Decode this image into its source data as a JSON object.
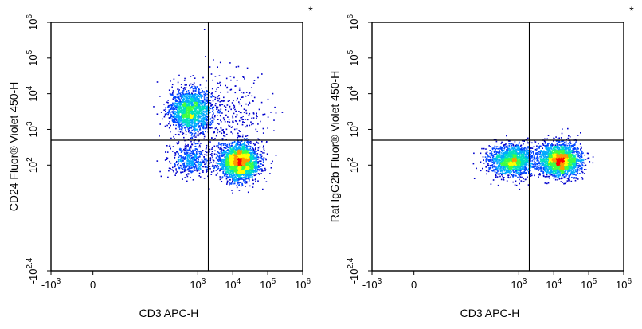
{
  "chart_data": [
    {
      "type": "scatter",
      "subtype": "flow-cytometry-density-dot-plot",
      "corner_mark": "*",
      "xlabel": "CD3 APC-H",
      "ylabel": "CD24  Fluor® Violet 450-H",
      "xlim": [
        -1000,
        1000000
      ],
      "ylim": [
        -251,
        1000000
      ],
      "x_scale": "biexponential",
      "y_scale": "biexponential",
      "x_ticks": [
        {
          "value": -1000,
          "base": "-10",
          "exp": "3"
        },
        {
          "value": 0,
          "base": "0",
          "exp": ""
        },
        {
          "value": 1000,
          "base": "10",
          "exp": "3"
        },
        {
          "value": 10000,
          "base": "10",
          "exp": "4"
        },
        {
          "value": 100000,
          "base": "10",
          "exp": "5"
        },
        {
          "value": 1000000,
          "base": "10",
          "exp": "6"
        }
      ],
      "y_ticks": [
        {
          "value": -251,
          "base": "-10",
          "exp": "2.4"
        },
        {
          "value": 100,
          "base": "10",
          "exp": "2"
        },
        {
          "value": 1000,
          "base": "10",
          "exp": "3"
        },
        {
          "value": 10000,
          "base": "10",
          "exp": "4"
        },
        {
          "value": 100000,
          "base": "10",
          "exp": "5"
        },
        {
          "value": 1000000,
          "base": "10",
          "exp": "6"
        }
      ],
      "gate_lines": {
        "x": 2000,
        "y": 500
      },
      "populations": [
        {
          "x_center": 600,
          "y_center": 3500,
          "spread_x": 0.55,
          "spread_y": 0.55,
          "count": 1700
        },
        {
          "x_center": 15000,
          "y_center": 130,
          "spread_x": 0.5,
          "spread_y": 0.45,
          "count": 2600
        },
        {
          "x_center": 600,
          "y_center": 140,
          "spread_x": 0.6,
          "spread_y": 0.4,
          "count": 500
        },
        {
          "x_center": 6000,
          "y_center": 3000,
          "spread_x": 1.0,
          "spread_y": 1.1,
          "count": 350
        }
      ]
    },
    {
      "type": "scatter",
      "subtype": "flow-cytometry-density-dot-plot",
      "corner_mark": "*",
      "xlabel": "CD3 APC-H",
      "ylabel": "Rat IgG2b  Fluor® Violet 450-H",
      "xlim": [
        -1000,
        1000000
      ],
      "ylim": [
        -251,
        1000000
      ],
      "x_scale": "biexponential",
      "y_scale": "biexponential",
      "x_ticks": [
        {
          "value": -1000,
          "base": "-10",
          "exp": "3"
        },
        {
          "value": 0,
          "base": "0",
          "exp": ""
        },
        {
          "value": 1000,
          "base": "10",
          "exp": "3"
        },
        {
          "value": 10000,
          "base": "10",
          "exp": "4"
        },
        {
          "value": 100000,
          "base": "10",
          "exp": "5"
        },
        {
          "value": 1000000,
          "base": "10",
          "exp": "6"
        }
      ],
      "y_ticks": [
        {
          "value": -251,
          "base": "-10",
          "exp": "2.4"
        },
        {
          "value": 100,
          "base": "10",
          "exp": "2"
        },
        {
          "value": 1000,
          "base": "10",
          "exp": "3"
        },
        {
          "value": 10000,
          "base": "10",
          "exp": "4"
        },
        {
          "value": 100000,
          "base": "10",
          "exp": "5"
        },
        {
          "value": 1000000,
          "base": "10",
          "exp": "6"
        }
      ],
      "gate_lines": {
        "x": 2000,
        "y": 500
      },
      "populations": [
        {
          "x_center": 600,
          "y_center": 140,
          "spread_x": 0.6,
          "spread_y": 0.4,
          "count": 1500
        },
        {
          "x_center": 15000,
          "y_center": 140,
          "spread_x": 0.5,
          "spread_y": 0.4,
          "count": 2200
        },
        {
          "x_center": 4000,
          "y_center": 160,
          "spread_x": 0.9,
          "spread_y": 0.5,
          "count": 200
        }
      ]
    }
  ],
  "colors": {
    "density_scale": [
      "#0000cc",
      "#0044ff",
      "#00aaff",
      "#00e0c0",
      "#40ff40",
      "#ffff00",
      "#ff9900",
      "#ff0000"
    ],
    "axes": "#000000"
  }
}
